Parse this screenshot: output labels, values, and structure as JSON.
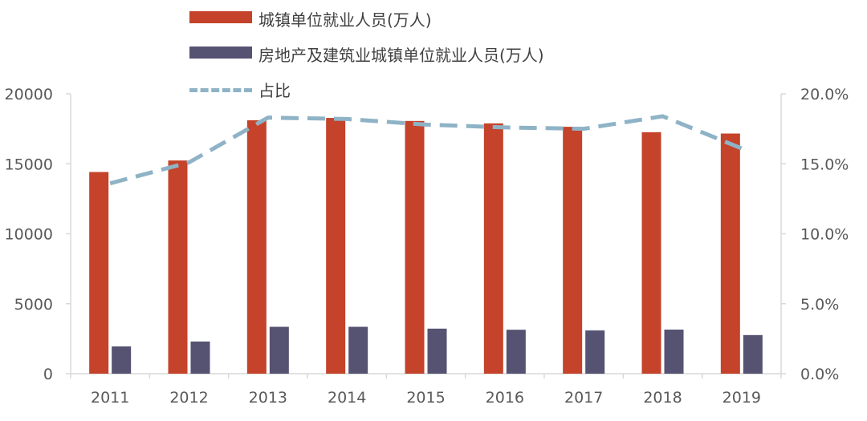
{
  "chart_data": {
    "type": "bar",
    "categories": [
      "2011",
      "2012",
      "2013",
      "2014",
      "2015",
      "2016",
      "2017",
      "2018",
      "2019"
    ],
    "series": [
      {
        "name": "城镇单位就业人员(万人)",
        "kind": "bar",
        "axis": "left",
        "color": "#c4432a",
        "values": [
          14413,
          15236,
          18108,
          18278,
          18062,
          17888,
          17644,
          17258,
          17162
        ]
      },
      {
        "name": "房地产及建筑业城镇单位就业人员(万人)",
        "kind": "bar",
        "axis": "left",
        "color": "#565272",
        "values": [
          1950,
          2300,
          3350,
          3350,
          3220,
          3140,
          3090,
          3150,
          2760
        ]
      },
      {
        "name": "占比",
        "kind": "line",
        "axis": "right",
        "color": "#8fb3c6",
        "values": [
          13.6,
          15.1,
          18.3,
          18.2,
          17.8,
          17.6,
          17.5,
          18.4,
          16.1
        ]
      }
    ],
    "ylim": [
      0,
      20000
    ],
    "y2lim": [
      0,
      20
    ],
    "yticks": [
      "0",
      "5000",
      "10000",
      "15000",
      "20000"
    ],
    "y2ticks": [
      "0.0%",
      "5.0%",
      "10.0%",
      "15.0%",
      "20.0%"
    ],
    "legend_position": "top",
    "grid": false
  }
}
